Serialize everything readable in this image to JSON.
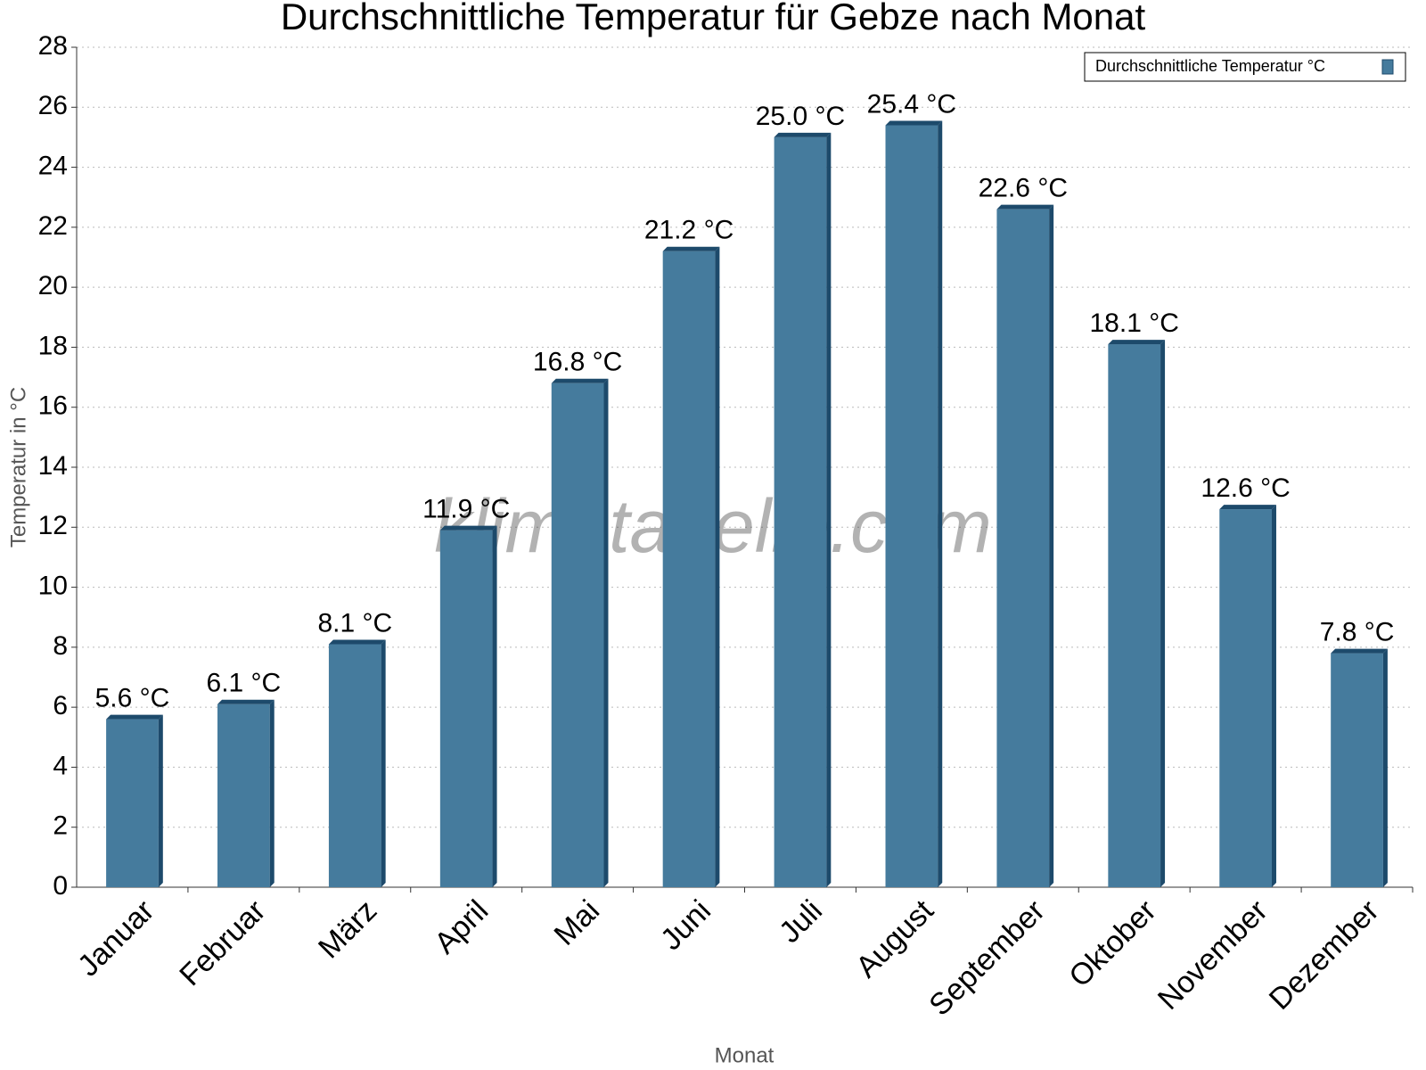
{
  "chart_data": {
    "type": "bar",
    "title": "Durchschnittliche Temperatur für Gebze nach Monat",
    "x_label": "Monat",
    "y_label": "Temperatur in °C",
    "watermark": "klimatabelle.com",
    "categories": [
      "Januar",
      "Februar",
      "März",
      "April",
      "Mai",
      "Juni",
      "Juli",
      "August",
      "September",
      "Oktober",
      "November",
      "Dezember"
    ],
    "series": [
      {
        "name": "Durchschnittliche Temperatur °C",
        "color": "#457b9d",
        "values": [
          5.6,
          6.1,
          8.1,
          11.9,
          16.8,
          21.2,
          25.0,
          25.4,
          22.6,
          18.1,
          12.6,
          7.8
        ],
        "value_labels": [
          "5.6 °C",
          "6.1 °C",
          "8.1 °C",
          "11.9 °C",
          "16.8 °C",
          "21.2 °C",
          "25.0 °C",
          "25.4 °C",
          "22.6 °C",
          "18.1 °C",
          "12.6 °C",
          "7.8 °C"
        ]
      }
    ],
    "ylim": [
      0,
      28
    ],
    "yticks": [
      0,
      2,
      4,
      6,
      8,
      10,
      12,
      14,
      16,
      18,
      20,
      22,
      24,
      26,
      28
    ],
    "grid": true,
    "legend": "top-right"
  }
}
